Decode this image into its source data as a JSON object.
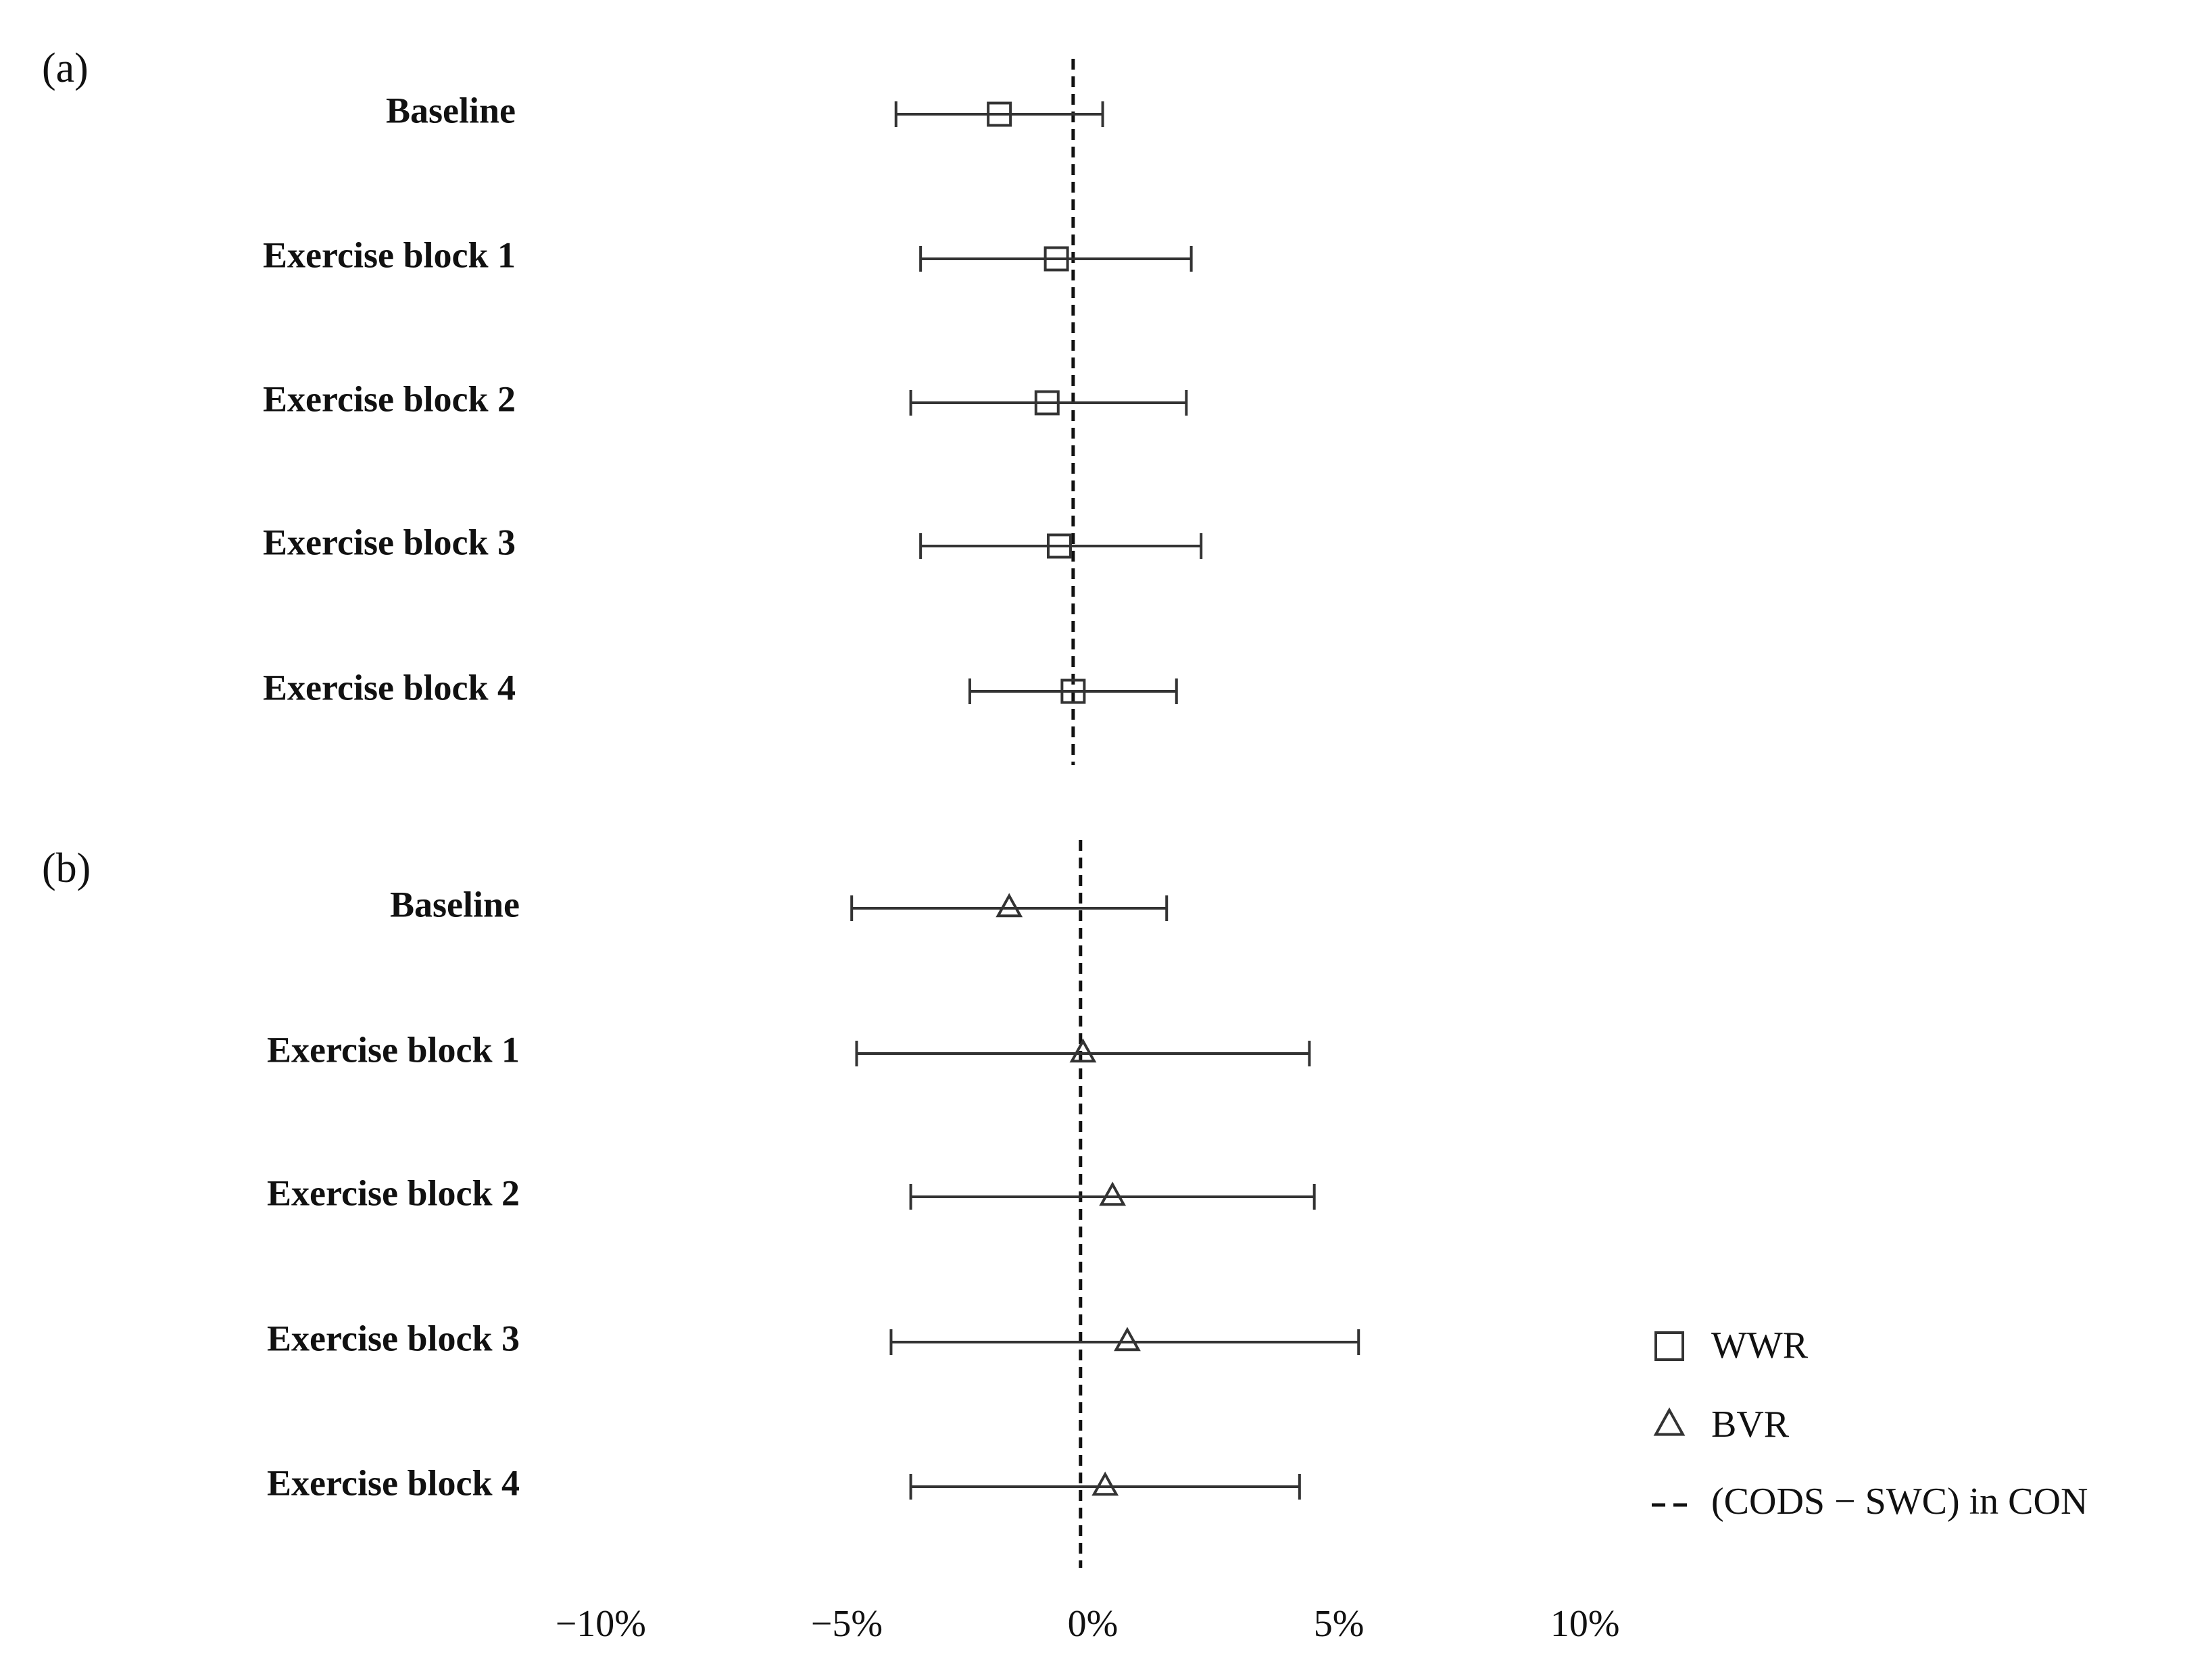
{
  "chart_data": [
    {
      "type": "forest",
      "panel_label": "(a)",
      "categories": [
        "Baseline",
        "Exercise block 1",
        "Exercise block 2",
        "Exercise block 3",
        "Exercise block 4"
      ],
      "series": [
        {
          "name": "WWR",
          "marker": "square",
          "color": "#333333",
          "values": [
            -1.9,
            -0.74,
            -0.93,
            -0.68,
            -0.4
          ],
          "lower": [
            -4.0,
            -3.5,
            -3.7,
            -3.5,
            -2.5
          ],
          "upper": [
            0.2,
            2.0,
            1.9,
            2.2,
            1.7
          ]
        }
      ],
      "reference": {
        "value": -0.4
      },
      "xlim": [
        -11,
        11
      ]
    },
    {
      "type": "forest",
      "panel_label": "(b)",
      "categories": [
        "Baseline",
        "Exercise block 1",
        "Exercise block 2",
        "Exercise block 3",
        "Exercise block 4"
      ],
      "series": [
        {
          "name": "BVR",
          "marker": "triangle",
          "color": "#333333",
          "values": [
            -1.7,
            -0.2,
            0.4,
            0.7,
            0.25
          ],
          "lower": [
            -4.9,
            -4.8,
            -3.7,
            -4.1,
            -3.7
          ],
          "upper": [
            1.5,
            4.4,
            4.5,
            5.4,
            4.2
          ]
        }
      ],
      "reference": {
        "name": "(CODS − SWC) in CON",
        "value": -0.25
      },
      "xlim": [
        -11,
        11
      ],
      "xticks": [
        {
          "value": -10,
          "label": "−10%"
        },
        {
          "value": -5,
          "label": "−5%"
        },
        {
          "value": 0,
          "label": "0%"
        },
        {
          "value": 5,
          "label": "5%"
        },
        {
          "value": 10,
          "label": "10%"
        }
      ]
    }
  ]
}
